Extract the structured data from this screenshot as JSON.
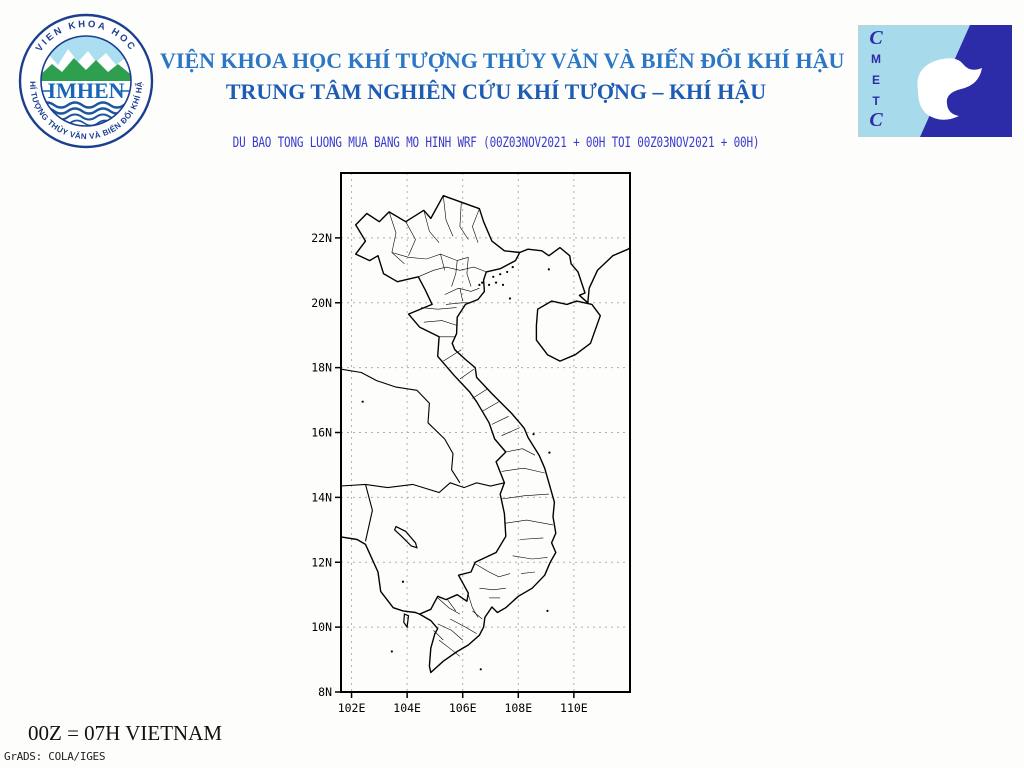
{
  "header": {
    "title_line1": "VIỆN KHOA HỌC KHÍ TƯỢNG THỦY VĂN VÀ BIẾN ĐỔI KHÍ HẬU",
    "title_line2": "TRUNG TÂM NGHIÊN CỨU KHÍ TƯỢNG – KHÍ HẬU",
    "subtitle": "DU BAO TONG LUONG MUA BANG MO HINH WRF (00Z03NOV2021 + 00H TOI 00Z03NOV2021 + 00H)",
    "title_line1_color": "#2b76c5",
    "title_line2_color": "#1d5cb4",
    "subtitle_color": "#3b3bcf"
  },
  "logos": {
    "imhen": {
      "acronym": "IMHEN",
      "arc_top": "VIEN KHOA HOC",
      "arc_bottom": "KHÍ TƯỢNG THỦY VĂN VÀ BIẾN ĐỔI KHÍ HẬU",
      "navy": "#1b3e8f",
      "green": "#2e9e4f",
      "sky": "#aadef0",
      "wave": "#1c55a0"
    },
    "cmetc": {
      "letters": [
        "C",
        "M",
        "E",
        "T",
        "C"
      ],
      "light_blue": "#a7dbeb",
      "dark_blue": "#2c2ca8"
    }
  },
  "map": {
    "lat_ticks": [
      {
        "label": "22N",
        "value": 22
      },
      {
        "label": "20N",
        "value": 20
      },
      {
        "label": "18N",
        "value": 18
      },
      {
        "label": "16N",
        "value": 16
      },
      {
        "label": "14N",
        "value": 14
      },
      {
        "label": "12N",
        "value": 12
      },
      {
        "label": "10N",
        "value": 10
      },
      {
        "label": "8N",
        "value": 8
      }
    ],
    "lon_ticks": [
      {
        "label": "102E",
        "value": 102
      },
      {
        "label": "104E",
        "value": 104
      },
      {
        "label": "106E",
        "value": 106
      },
      {
        "label": "108E",
        "value": 108
      },
      {
        "label": "110E",
        "value": 110
      }
    ],
    "lon_range": [
      101.62,
      112.02
    ],
    "lat_range": [
      8.0,
      24.0
    ],
    "grid_color": "#b0b0b0",
    "line_color": "#000000"
  },
  "footer": {
    "note": "00Z = 07H VIETNAM",
    "credit": "GrADS: COLA/IGES"
  }
}
